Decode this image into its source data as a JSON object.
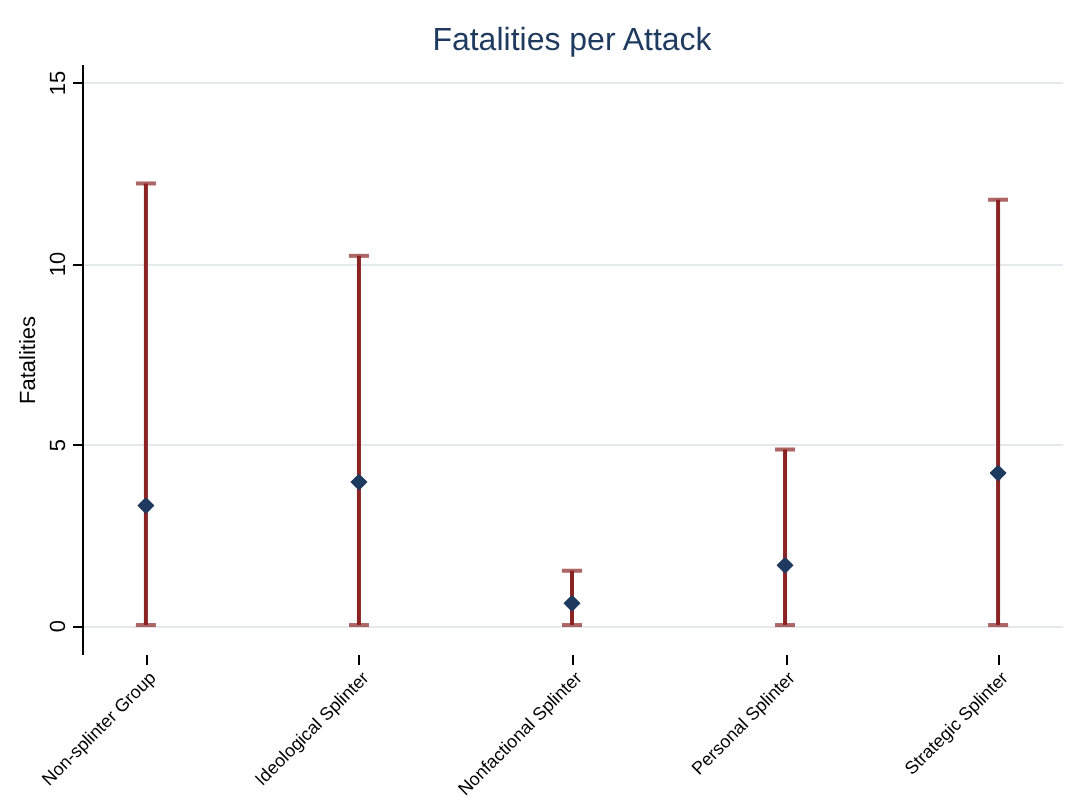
{
  "chart_data": {
    "type": "scatter",
    "title": "Fatalities per Attack",
    "ylabel": "Fatalities",
    "categories": [
      "Non-splinter Group",
      "Ideological Splinter",
      "Nonfactional Splinter",
      "Personal Splinter",
      "Strategic Splinter"
    ],
    "series": [
      {
        "color": "#1f3a5f",
        "values": [
          3.3,
          3.95,
          0.6,
          1.65,
          4.2
        ],
        "errors": [
          [
            0,
            12.2
          ],
          [
            0,
            10.2
          ],
          [
            0,
            1.5
          ],
          [
            0,
            4.85
          ],
          [
            0,
            11.75
          ]
        ]
      }
    ],
    "ylim": [
      -0.8,
      15.5
    ],
    "yticks": [
      0,
      5,
      10,
      15
    ],
    "grid": "y",
    "marker": "diamond"
  }
}
